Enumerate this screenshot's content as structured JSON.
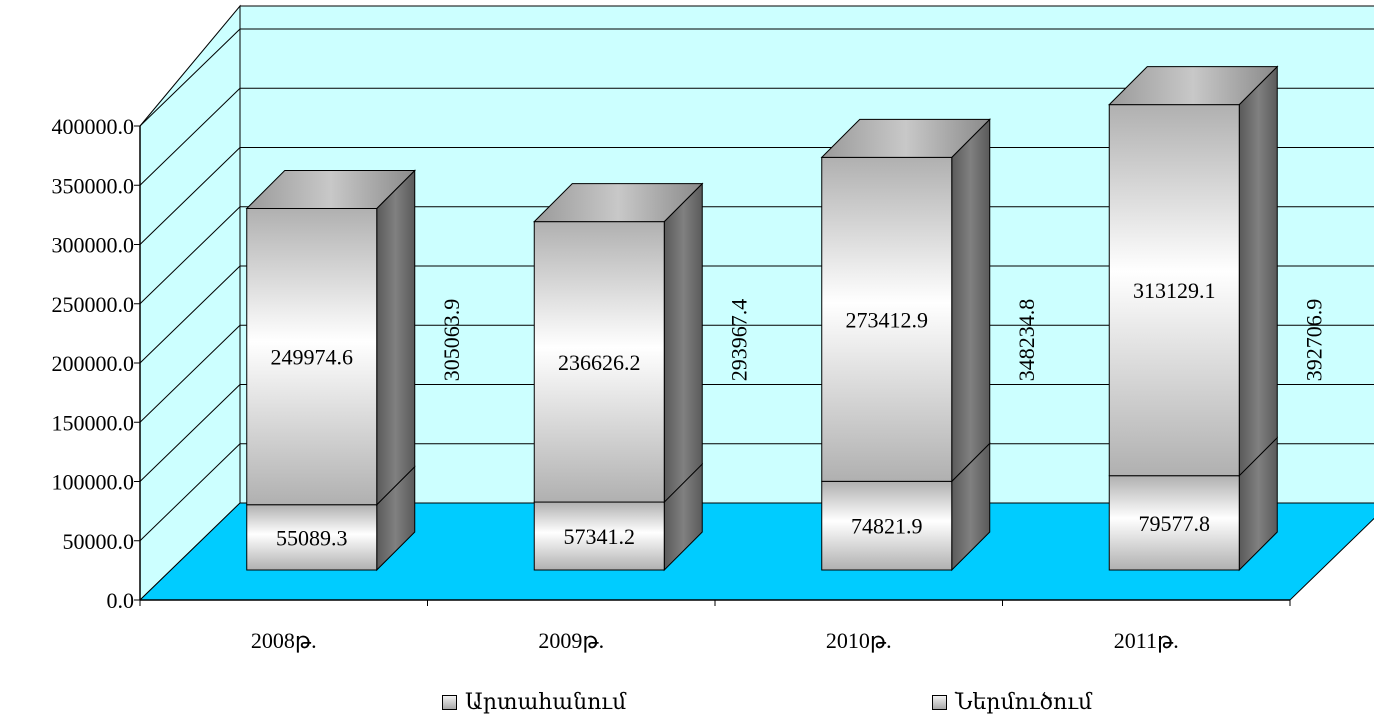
{
  "chart_data": {
    "type": "bar",
    "stacked": true,
    "categories": [
      "2008թ.",
      "2009թ.",
      "2010թ.",
      "2011թ."
    ],
    "series": [
      {
        "name": "Ներմուծում",
        "values": [
          55089.3,
          57341.2,
          74821.9,
          79577.8
        ]
      },
      {
        "name": "Արտահանում",
        "values": [
          249974.6,
          236626.2,
          273412.9,
          313129.1
        ]
      }
    ],
    "totals": [
      305063.9,
      293967.4,
      348234.8,
      392706.9
    ],
    "y_tick_labels": [
      "0.0",
      "50000.0",
      "100000.0",
      "150000.0",
      "200000.0",
      "250000.0",
      "300000.0",
      "350000.0",
      "400000.0"
    ],
    "ylim": [
      0,
      400000
    ],
    "grid": true,
    "legend_position": "bottom",
    "colors": {
      "wall": "#ccffff",
      "floor": "#00ccff",
      "bar": "#c0c0c0",
      "bar_side": "#666666",
      "bar_top": "#999999"
    }
  },
  "legend": {
    "items": [
      {
        "label": "Արտահանում"
      },
      {
        "label": "Ներմուծում"
      }
    ]
  }
}
